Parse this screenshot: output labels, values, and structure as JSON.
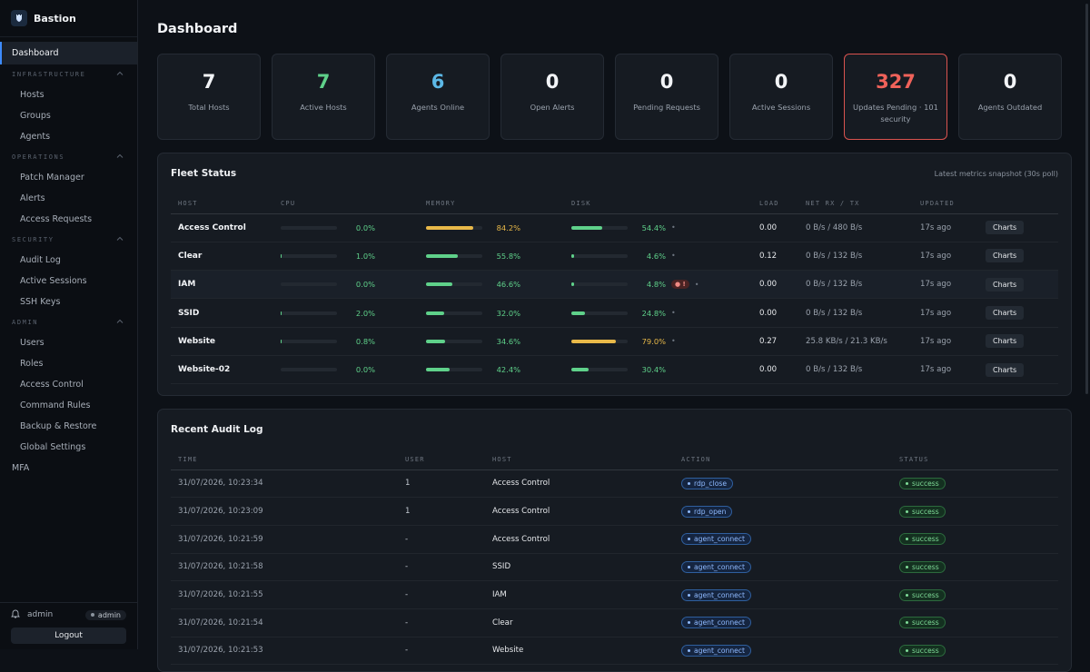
{
  "brand": {
    "name": "Bastion"
  },
  "nav": {
    "dashboard": "Dashboard",
    "sections": [
      {
        "title": "INFRASTRUCTURE",
        "items": [
          "Hosts",
          "Groups",
          "Agents"
        ]
      },
      {
        "title": "OPERATIONS",
        "items": [
          "Patch Manager",
          "Alerts",
          "Access Requests"
        ]
      },
      {
        "title": "SECURITY",
        "items": [
          "Audit Log",
          "Active Sessions",
          "SSH Keys"
        ]
      },
      {
        "title": "ADMIN",
        "items": [
          "Users",
          "Roles",
          "Access Control",
          "Command Rules",
          "Backup & Restore",
          "Global Settings"
        ]
      }
    ],
    "mfa": "MFA"
  },
  "footer": {
    "username": "admin",
    "role": "admin",
    "logout": "Logout"
  },
  "page": {
    "title": "Dashboard"
  },
  "stats": [
    {
      "value": "7",
      "label": "Total Hosts",
      "color": "#f2f4f7"
    },
    {
      "value": "7",
      "label": "Active Hosts",
      "color": "#5fd18a"
    },
    {
      "value": "6",
      "label": "Agents Online",
      "color": "#5cb8e6"
    },
    {
      "value": "0",
      "label": "Open Alerts",
      "color": "#f2f4f7"
    },
    {
      "value": "0",
      "label": "Pending Requests",
      "color": "#f2f4f7"
    },
    {
      "value": "0",
      "label": "Active Sessions",
      "color": "#f2f4f7"
    },
    {
      "value": "327",
      "label": "Updates Pending · 101 security",
      "color": "#f0625a"
    },
    {
      "value": "0",
      "label": "Agents Outdated",
      "color": "#f2f4f7"
    }
  ],
  "fleet": {
    "title": "Fleet Status",
    "note": "Latest metrics snapshot (30s poll)",
    "columns": [
      "HOST",
      "CPU",
      "MEMORY",
      "DISK",
      "LOAD",
      "NET RX / TX",
      "UPDATED",
      ""
    ],
    "charts_label": "Charts",
    "rows": [
      {
        "host": "Access Control",
        "cpu": 0.0,
        "cpu_text": "0.0%",
        "mem": 84.2,
        "mem_text": "84.2%",
        "disk": 54.4,
        "disk_text": "54.4%",
        "disk_extra": "•",
        "warn": "",
        "load": "0.00",
        "net": "0 B/s / 480 B/s",
        "updated": "17s ago"
      },
      {
        "host": "Clear",
        "cpu": 1.0,
        "cpu_text": "1.0%",
        "mem": 55.8,
        "mem_text": "55.8%",
        "disk": 4.6,
        "disk_text": "4.6%",
        "disk_extra": "•",
        "warn": "",
        "load": "0.12",
        "net": "0 B/s / 132 B/s",
        "updated": "17s ago"
      },
      {
        "host": "IAM",
        "cpu": 0.0,
        "cpu_text": "0.0%",
        "mem": 46.6,
        "mem_text": "46.6%",
        "disk": 4.8,
        "disk_text": "4.8%",
        "disk_extra": "•",
        "warn": "● !",
        "load": "0.00",
        "net": "0 B/s / 132 B/s",
        "updated": "17s ago"
      },
      {
        "host": "SSID",
        "cpu": 2.0,
        "cpu_text": "2.0%",
        "mem": 32.0,
        "mem_text": "32.0%",
        "disk": 24.8,
        "disk_text": "24.8%",
        "disk_extra": "•",
        "warn": "",
        "load": "0.00",
        "net": "0 B/s / 132 B/s",
        "updated": "17s ago"
      },
      {
        "host": "Website",
        "cpu": 0.8,
        "cpu_text": "0.8%",
        "mem": 34.6,
        "mem_text": "34.6%",
        "disk": 79.0,
        "disk_text": "79.0%",
        "disk_extra": "•",
        "warn": "",
        "load": "0.27",
        "net": "25.8 KB/s / 21.3 KB/s",
        "updated": "17s ago"
      },
      {
        "host": "Website-02",
        "cpu": 0.0,
        "cpu_text": "0.0%",
        "mem": 42.4,
        "mem_text": "42.4%",
        "disk": 30.4,
        "disk_text": "30.4%",
        "disk_extra": "",
        "warn": "",
        "load": "0.00",
        "net": "0 B/s / 132 B/s",
        "updated": "17s ago"
      }
    ]
  },
  "audit": {
    "title": "Recent Audit Log",
    "columns": [
      "TIME",
      "USER",
      "HOST",
      "ACTION",
      "STATUS"
    ],
    "rows": [
      {
        "time": "31/07/2026, 10:23:34",
        "user": "1",
        "host": "Access Control",
        "action": "rdp_close",
        "status": "success"
      },
      {
        "time": "31/07/2026, 10:23:09",
        "user": "1",
        "host": "Access Control",
        "action": "rdp_open",
        "status": "success"
      },
      {
        "time": "31/07/2026, 10:21:59",
        "user": "-",
        "host": "Access Control",
        "action": "agent_connect",
        "status": "success"
      },
      {
        "time": "31/07/2026, 10:21:58",
        "user": "-",
        "host": "SSID",
        "action": "agent_connect",
        "status": "success"
      },
      {
        "time": "31/07/2026, 10:21:55",
        "user": "-",
        "host": "IAM",
        "action": "agent_connect",
        "status": "success"
      },
      {
        "time": "31/07/2026, 10:21:54",
        "user": "-",
        "host": "Clear",
        "action": "agent_connect",
        "status": "success"
      },
      {
        "time": "31/07/2026, 10:21:53",
        "user": "-",
        "host": "Website",
        "action": "agent_connect",
        "status": "success"
      }
    ]
  }
}
